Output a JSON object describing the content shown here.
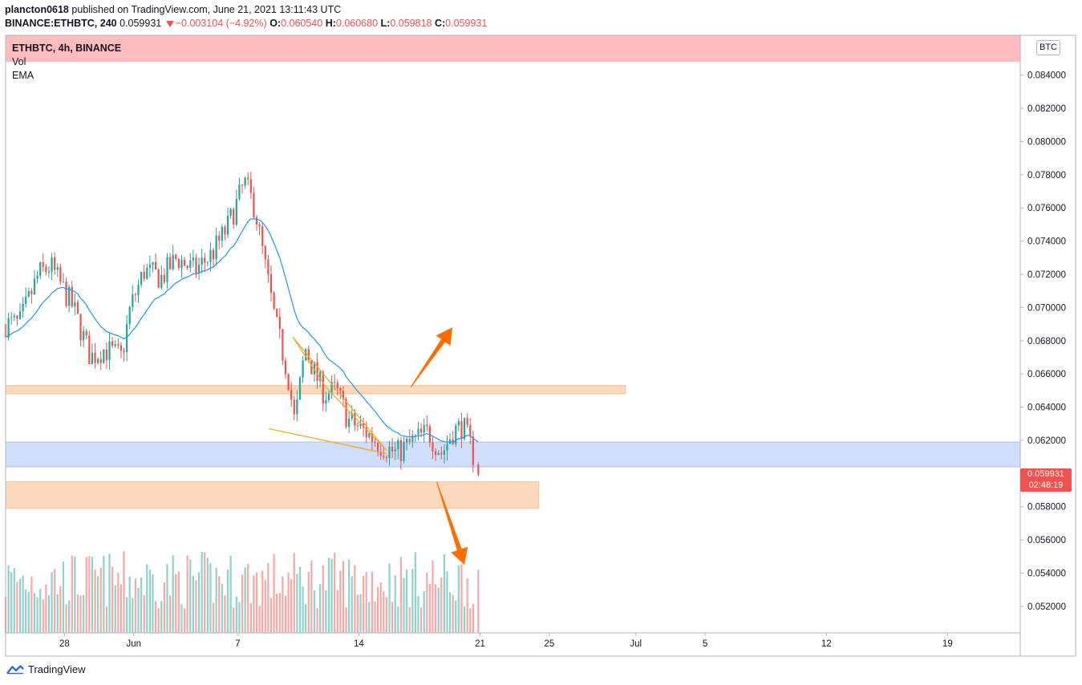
{
  "header": {
    "author": "plancton0618",
    "published_text": " published on TradingView.com, June 21, 2021 13:11:43 UTC",
    "symbol_line": "BINANCE:ETHBTC, 240",
    "last_price": "0.059931",
    "change": "−0.003104 (−4.92%)",
    "open_label": "O:",
    "open_value": "0.060540",
    "high_label": "H:",
    "high_value": "0.060680",
    "low_label": "L:",
    "low_value": "0.059818",
    "close_label": "C:",
    "close_value": "0.059931"
  },
  "legend": {
    "symbol": "ETHBTC, 4h, BINANCE",
    "vol": "Vol",
    "ema": "EMA"
  },
  "currency_badge": "BTC",
  "price_tag": {
    "price": "0.059931",
    "countdown": "02:48:19"
  },
  "footer": {
    "brand": "TradingView"
  },
  "colors": {
    "up": "#26a69a",
    "down": "#ef5350",
    "ema": "#2196f3",
    "zone_red": "#ffbcbc",
    "zone_orange": "#fbd9bd",
    "zone_blue": "#cfdef9",
    "arrow": "#ff6d00",
    "pattern": "#f5a623"
  },
  "chart_data": {
    "type": "candlestick",
    "timeframe": "4h",
    "y_tick_labels": [
      "0.052000",
      "0.054000",
      "0.056000",
      "0.058000",
      "0.060000",
      "0.062000",
      "0.064000",
      "0.066000",
      "0.068000",
      "0.070000",
      "0.072000",
      "0.074000",
      "0.076000",
      "0.078000",
      "0.080000",
      "0.082000",
      "0.084000"
    ],
    "y_range": [
      0.0504,
      0.0864
    ],
    "x_tick_labels": [
      {
        "label": "28",
        "day": 0
      },
      {
        "label": "Jun",
        "day": 4
      },
      {
        "label": "7",
        "day": 10
      },
      {
        "label": "14",
        "day": 17
      },
      {
        "label": "21",
        "day": 24
      },
      {
        "label": "25",
        "day": 28
      },
      {
        "label": "Jul",
        "day": 33
      },
      {
        "label": "5",
        "day": 37
      },
      {
        "label": "12",
        "day": 44
      },
      {
        "label": "19",
        "day": 51
      }
    ],
    "x_range_days": [
      -3.4,
      55.2
    ],
    "zones": [
      {
        "name": "red-resistance-zone",
        "from": 0.0848,
        "to": 0.0868,
        "end_day": null,
        "color": "#ffbcbc"
      },
      {
        "name": "orange-resistance-zone",
        "from": 0.0648,
        "to": 0.0653,
        "end_day": 32.4,
        "color": "#fbd9bd"
      },
      {
        "name": "blue-support-zone",
        "from": 0.0604,
        "to": 0.0619,
        "end_day": null,
        "color": "#cfdef9"
      },
      {
        "name": "orange-support-zone",
        "from": 0.0579,
        "to": 0.0595,
        "end_day": 27.4,
        "color": "#fbd9bd"
      }
    ],
    "pattern_lines": [
      {
        "from_day": 13.2,
        "from": 0.0682,
        "to_day": 18.6,
        "to": 0.0614
      },
      {
        "from_day": 13.2,
        "from": 0.0682,
        "to_day": 15.1,
        "to": 0.0652
      },
      {
        "from_day": 15.1,
        "from": 0.0652,
        "to_day": 18.6,
        "to": 0.0614
      },
      {
        "from_day": 11.8,
        "from": 0.0627,
        "to_day": 18.6,
        "to": 0.0612
      }
    ],
    "arrows": [
      {
        "direction": "up",
        "from_day": 20.0,
        "from": 0.0652,
        "to_day": 22.4,
        "to": 0.0688
      },
      {
        "direction": "down",
        "from_day": 21.5,
        "from": 0.0595,
        "to_day": 23.1,
        "to": 0.0545
      }
    ],
    "anchors": [
      {
        "day": -3.4,
        "close": 0.069
      },
      {
        "day": -2.6,
        "close": 0.069
      },
      {
        "day": -1.5,
        "close": 0.072
      },
      {
        "day": -0.8,
        "close": 0.0725
      },
      {
        "day": 0.5,
        "close": 0.07
      },
      {
        "day": 1.5,
        "close": 0.067
      },
      {
        "day": 2.3,
        "close": 0.0675
      },
      {
        "day": 3.3,
        "close": 0.067
      },
      {
        "day": 3.8,
        "close": 0.07
      },
      {
        "day": 4.6,
        "close": 0.0722
      },
      {
        "day": 5.6,
        "close": 0.0718
      },
      {
        "day": 6.5,
        "close": 0.073
      },
      {
        "day": 7.5,
        "close": 0.0722
      },
      {
        "day": 8.5,
        "close": 0.0732
      },
      {
        "day": 9.4,
        "close": 0.0748
      },
      {
        "day": 10.4,
        "close": 0.0775
      },
      {
        "day": 11.0,
        "close": 0.076
      },
      {
        "day": 11.5,
        "close": 0.073
      },
      {
        "day": 12.2,
        "close": 0.069
      },
      {
        "day": 12.9,
        "close": 0.066
      },
      {
        "day": 13.3,
        "close": 0.063
      },
      {
        "day": 13.9,
        "close": 0.0676
      },
      {
        "day": 14.4,
        "close": 0.0662
      },
      {
        "day": 15.0,
        "close": 0.0648
      },
      {
        "day": 15.7,
        "close": 0.065
      },
      {
        "day": 16.4,
        "close": 0.0632
      },
      {
        "day": 17.4,
        "close": 0.0625
      },
      {
        "day": 18.3,
        "close": 0.0617
      },
      {
        "day": 19.2,
        "close": 0.0612
      },
      {
        "day": 20.2,
        "close": 0.062
      },
      {
        "day": 21.0,
        "close": 0.0625
      },
      {
        "day": 21.8,
        "close": 0.0612
      },
      {
        "day": 22.4,
        "close": 0.0625
      },
      {
        "day": 23.0,
        "close": 0.0629
      },
      {
        "day": 23.5,
        "close": 0.0615
      },
      {
        "day": 23.9,
        "close": 0.06
      }
    ]
  }
}
